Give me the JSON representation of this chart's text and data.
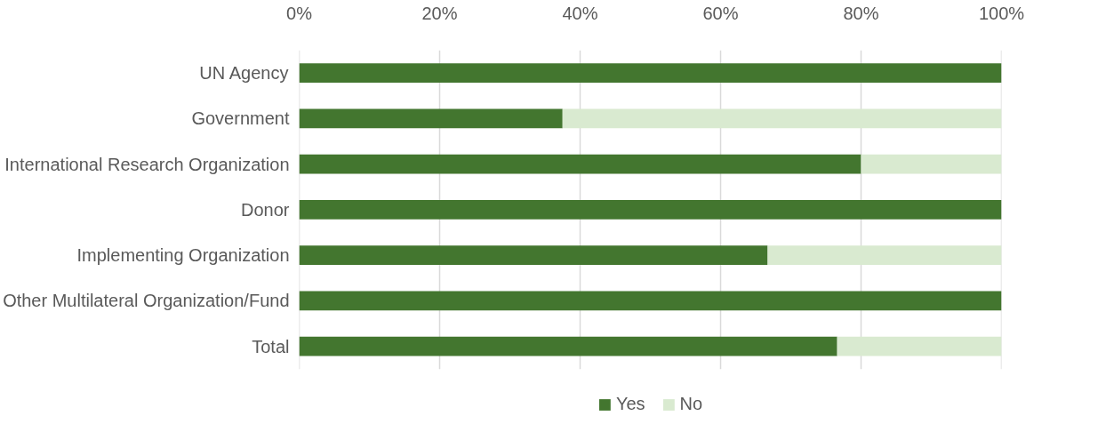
{
  "chart_data": {
    "type": "bar",
    "orientation": "horizontal",
    "stacked": true,
    "categories": [
      "UN Agency",
      "Government",
      "International Research Organization",
      "Donor",
      "Implementing Organization",
      "Other Multilateral Organization/Fund",
      "Total"
    ],
    "series": [
      {
        "name": "Yes",
        "color": "#43762f",
        "values": [
          100,
          37.5,
          80,
          100,
          66.7,
          100,
          76.6
        ]
      },
      {
        "name": "No",
        "color": "#d9ead0",
        "values": [
          0,
          62.5,
          20,
          0,
          33.3,
          0,
          23.4
        ]
      }
    ],
    "xlim": [
      0,
      100
    ],
    "xticks": [
      {
        "value": 0,
        "label": "0%"
      },
      {
        "value": 20,
        "label": "20%"
      },
      {
        "value": 40,
        "label": "40%"
      },
      {
        "value": 60,
        "label": "60%"
      },
      {
        "value": 80,
        "label": "80%"
      },
      {
        "value": 100,
        "label": "100%"
      }
    ],
    "grid": "x",
    "legend": "bottom"
  }
}
